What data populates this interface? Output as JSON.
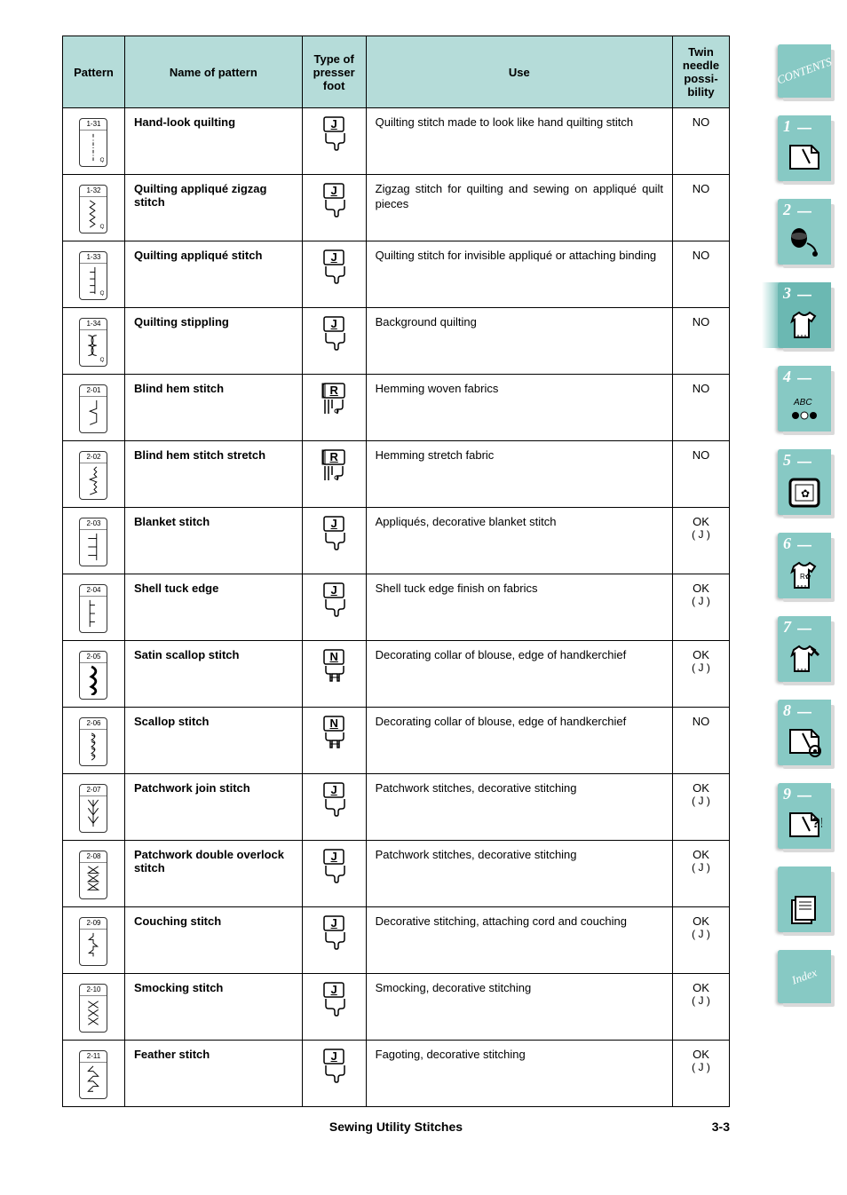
{
  "page": {
    "footer_title": "Sewing Utility Stitches",
    "page_number": "3-3"
  },
  "colors": {
    "header_bg": "#b5dcd9",
    "tab_bg": "#87c9c4",
    "tab_shadow": "#d9d9d9",
    "border": "#000000",
    "text": "#000000"
  },
  "headers": {
    "pattern": "Pattern",
    "name": "Name of pattern",
    "foot": "Type of presser foot",
    "use": "Use",
    "twin": "Twin needle possi­bility"
  },
  "rows": [
    {
      "code": "1-31",
      "name": "Hand-look quilting",
      "foot": "J",
      "use": "Quilting stitch made to look like hand quilting stitch",
      "twin": "NO",
      "twin_sub": "",
      "icon": "dashed-q"
    },
    {
      "code": "1-32",
      "name": "Quilting appliqué zigzag stitch",
      "foot": "J",
      "use": "Zigzag stitch for quilting and sewing on appliqué quilt pieces",
      "twin": "NO",
      "twin_sub": "",
      "icon": "zigzag-q"
    },
    {
      "code": "1-33",
      "name": "Quilting appliqué stitch",
      "foot": "J",
      "use": "Quilting stitch for invisible appliqué or attaching binding",
      "twin": "NO",
      "twin_sub": "",
      "icon": "applique-q"
    },
    {
      "code": "1-34",
      "name": "Quilting stippling",
      "foot": "J",
      "use": "Background quilting",
      "twin": "NO",
      "twin_sub": "",
      "icon": "stipple-q"
    },
    {
      "code": "2-01",
      "name": "Blind hem stitch",
      "foot": "R",
      "use": "Hemming woven fabrics",
      "twin": "NO",
      "twin_sub": "",
      "icon": "blindhem"
    },
    {
      "code": "2-02",
      "name": "Blind hem stitch stretch",
      "foot": "R",
      "use": "Hemming stretch fabric",
      "twin": "NO",
      "twin_sub": "",
      "icon": "blindhem-stretch"
    },
    {
      "code": "2-03",
      "name": "Blanket stitch",
      "foot": "J",
      "use": "Appliqués, decorative blanket stitch",
      "twin": "OK",
      "twin_sub": "( J )",
      "icon": "blanket"
    },
    {
      "code": "2-04",
      "name": "Shell tuck edge",
      "foot": "J",
      "use": "Shell tuck edge finish on fabrics",
      "twin": "OK",
      "twin_sub": "( J )",
      "icon": "shelltuck"
    },
    {
      "code": "2-05",
      "name": "Satin scallop stitch",
      "foot": "N",
      "use": "Decorating collar of blouse, edge of handkerchief",
      "twin": "OK",
      "twin_sub": "( J )",
      "icon": "satinscallop"
    },
    {
      "code": "2-06",
      "name": "Scallop stitch",
      "foot": "N",
      "use": "Decorating collar of blouse, edge of handkerchief",
      "twin": "NO",
      "twin_sub": "",
      "icon": "scallop"
    },
    {
      "code": "2-07",
      "name": "Patchwork join stitch",
      "foot": "J",
      "use": "Patchwork stitches, decorative stitching",
      "twin": "OK",
      "twin_sub": "( J )",
      "icon": "patchjoin"
    },
    {
      "code": "2-08",
      "name": "Patchwork double overlock stitch",
      "foot": "J",
      "use": "Patchwork stitches, decorative stitching",
      "twin": "OK",
      "twin_sub": "( J )",
      "icon": "doubleoverlock"
    },
    {
      "code": "2-09",
      "name": "Couching stitch",
      "foot": "J",
      "use": "Decorative stitching, attaching cord and couching",
      "twin": "OK",
      "twin_sub": "( J )",
      "icon": "couching"
    },
    {
      "code": "2-10",
      "name": "Smocking stitch",
      "foot": "J",
      "use": "Smocking, decorative stitching",
      "twin": "OK",
      "twin_sub": "( J )",
      "icon": "smocking"
    },
    {
      "code": "2-11",
      "name": "Feather stitch",
      "foot": "J",
      "use": "Fagoting, decorative stitching",
      "twin": "OK",
      "twin_sub": "( J )",
      "icon": "feather"
    }
  ],
  "tabs": [
    {
      "num": "",
      "label": "CONTENTS",
      "type": "contents"
    },
    {
      "num": "1",
      "type": "icon",
      "icon": "needle"
    },
    {
      "num": "2",
      "type": "icon",
      "icon": "spool"
    },
    {
      "num": "3",
      "type": "icon",
      "icon": "shirt",
      "active": true
    },
    {
      "num": "4",
      "type": "icon",
      "icon": "abc"
    },
    {
      "num": "5",
      "type": "icon",
      "icon": "frame"
    },
    {
      "num": "6",
      "type": "icon",
      "icon": "shirt-deco"
    },
    {
      "num": "7",
      "type": "icon",
      "icon": "shirt-edit"
    },
    {
      "num": "8",
      "type": "icon",
      "icon": "needle-gear"
    },
    {
      "num": "9",
      "type": "icon",
      "icon": "needle-question"
    },
    {
      "num": "",
      "type": "icon",
      "icon": "pages"
    },
    {
      "num": "",
      "label": "Index",
      "type": "index"
    }
  ]
}
